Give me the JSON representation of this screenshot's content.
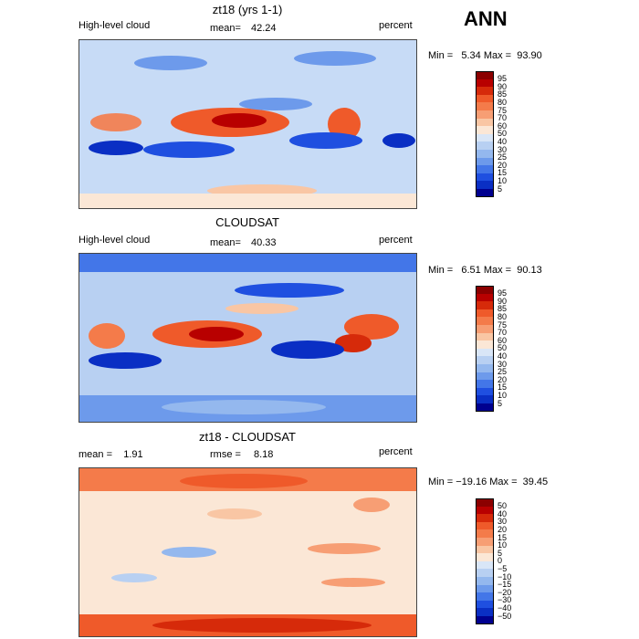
{
  "season": "ANN",
  "panels": [
    {
      "title": "zt18 (yrs 1-1)",
      "left_label": "High-level cloud",
      "mean_label": "mean=",
      "mean_value": "42.24",
      "unit": "percent",
      "minmax": "Min =   5.34 Max =  93.90",
      "legend_levels": [
        "95",
        "90",
        "85",
        "80",
        "75",
        "70",
        "60",
        "50",
        "40",
        "30",
        "25",
        "20",
        "15",
        "10",
        "5"
      ],
      "legend_colors": [
        "#8b0000",
        "#b80000",
        "#d62a0a",
        "#ef5a2a",
        "#f47b4a",
        "#f79e74",
        "#f9c6a4",
        "#fbe7d6",
        "#d9e6f7",
        "#b8d0f2",
        "#94b8ee",
        "#6d9aeb",
        "#4376e8",
        "#1f4fe0",
        "#0a2fc4",
        "#00008f"
      ]
    },
    {
      "title": "CLOUDSAT",
      "left_label": "High-level cloud",
      "mean_label": "mean=",
      "mean_value": "40.33",
      "unit": "percent",
      "minmax": "Min =   6.51 Max =  90.13",
      "legend_levels": [
        "95",
        "90",
        "85",
        "80",
        "75",
        "70",
        "60",
        "50",
        "40",
        "30",
        "25",
        "20",
        "15",
        "10",
        "5"
      ],
      "legend_colors": [
        "#8b0000",
        "#b80000",
        "#d62a0a",
        "#ef5a2a",
        "#f47b4a",
        "#f79e74",
        "#f9c6a4",
        "#fbe7d6",
        "#d9e6f7",
        "#b8d0f2",
        "#94b8ee",
        "#6d9aeb",
        "#4376e8",
        "#1f4fe0",
        "#0a2fc4",
        "#00008f"
      ]
    },
    {
      "title": "zt18 - CLOUDSAT",
      "left_label": "mean =    1.91",
      "mean_label": "rmse =",
      "mean_value": "8.18",
      "unit": "percent",
      "minmax": "Min = −19.16 Max =  39.45",
      "legend_levels": [
        "50",
        "40",
        "30",
        "20",
        "15",
        "10",
        "5",
        "0",
        "−5",
        "−10",
        "−15",
        "−20",
        "−30",
        "−40",
        "−50"
      ],
      "legend_colors": [
        "#8b0000",
        "#b80000",
        "#d62a0a",
        "#ef5a2a",
        "#f47b4a",
        "#f79e74",
        "#f9c6a4",
        "#fbe7d6",
        "#d9e6f7",
        "#b8d0f2",
        "#94b8ee",
        "#6d9aeb",
        "#4376e8",
        "#1f4fe0",
        "#0a2fc4",
        "#00008f"
      ]
    }
  ]
}
